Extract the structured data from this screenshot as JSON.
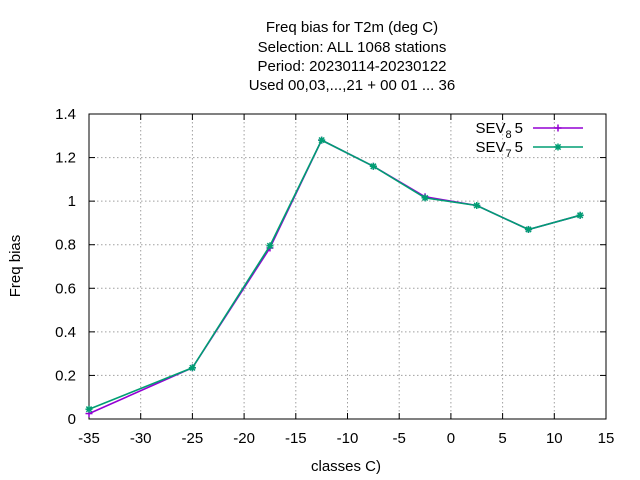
{
  "chart_data": {
    "type": "line",
    "title_lines": [
      "Freq bias  for T2m (deg C)",
      "Selection: ALL   1068 stations",
      "Period: 20230114-20230122",
      "Used  00,03,...,21  + 00 01 ... 36"
    ],
    "xlabel": "classes C)",
    "ylabel": "Freq bias",
    "xlim": [
      -35,
      15
    ],
    "ylim": [
      0,
      1.4
    ],
    "xticks": [
      -35,
      -30,
      -25,
      -20,
      -15,
      -10,
      -5,
      0,
      5,
      10,
      15
    ],
    "yticks": [
      0,
      0.2,
      0.4,
      0.6,
      0.8,
      1,
      1.2,
      1.4
    ],
    "xtick_labels": [
      "-35",
      "-30",
      "-25",
      "-20",
      "-15",
      "-10",
      "-5",
      "0",
      "5",
      "10",
      "15"
    ],
    "ytick_labels": [
      "0",
      "0.2",
      "0.4",
      "0.6",
      "0.8",
      "1",
      "1.2",
      "1.4"
    ],
    "grid": true,
    "legend_position": "top-right",
    "series": [
      {
        "name_base": "SEV",
        "name_sub": "8",
        "name_suffix": "5",
        "color": "#9400d3",
        "marker": "plus",
        "x": [
          -35,
          -25,
          -17.5,
          -12.5,
          -7.5,
          -2.5,
          2.5,
          7.5,
          12.5
        ],
        "y": [
          0.025,
          0.235,
          0.785,
          1.28,
          1.16,
          1.02,
          0.98,
          0.87,
          0.935
        ]
      },
      {
        "name_base": "SEV",
        "name_sub": "7",
        "name_suffix": "5",
        "color": "#009e73",
        "marker": "star",
        "x": [
          -35,
          -25,
          -17.5,
          -12.5,
          -7.5,
          -2.5,
          2.5,
          7.5,
          12.5
        ],
        "y": [
          0.045,
          0.235,
          0.795,
          1.28,
          1.16,
          1.015,
          0.98,
          0.87,
          0.935
        ]
      }
    ]
  }
}
